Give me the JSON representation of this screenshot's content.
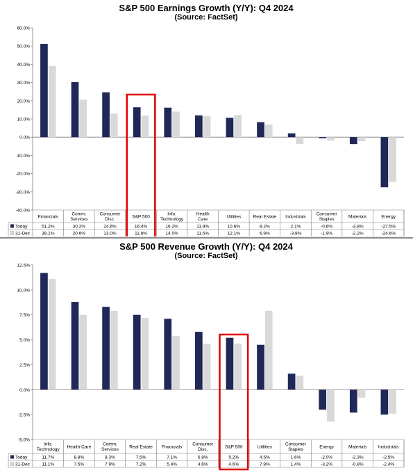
{
  "colors": {
    "today": "#1f2857",
    "prior": "#d9d9d9",
    "highlight": "#e00000",
    "grid": "#000000",
    "text": "#000000"
  },
  "chart_data": [
    {
      "type": "bar",
      "title": "S&P 500 Earnings Growth (Y/Y): Q4 2024",
      "subtitle": "(Source: FactSet)",
      "categories": [
        "Financials",
        "Comm.\nServices",
        "Consumer\nDisc.",
        "S&P 500",
        "Info.\nTechnology",
        "Health\nCare",
        "Utilities",
        "Real Estate",
        "Industrials",
        "Consumer\nStaples",
        "Materials",
        "Energy"
      ],
      "series": [
        {
          "name": "Today",
          "values": [
            51.2,
            30.2,
            24.6,
            16.4,
            16.2,
            11.9,
            10.6,
            8.2,
            2.1,
            -0.6,
            -3.8,
            -27.5
          ]
        },
        {
          "name": "31-Dec",
          "values": [
            39.1,
            20.6,
            13.0,
            11.8,
            14.0,
            11.5,
            12.1,
            6.9,
            -3.8,
            -1.9,
            -2.2,
            -24.6
          ]
        }
      ],
      "table_values": [
        [
          "51.2%",
          "30.2%",
          "24.6%",
          "16.4%",
          "16.2%",
          "11.9%",
          "10.6%",
          "8.2%",
          "2.1%",
          "-0.6%",
          "-3.8%",
          "-27.5%"
        ],
        [
          "39.1%",
          "20.6%",
          "13.0%",
          "11.8%",
          "14.0%",
          "11.5%",
          "12.1%",
          "6.9%",
          "-3.8%",
          "-1.9%",
          "-2.2%",
          "-24.6%"
        ]
      ],
      "yticks": [
        "60.0%",
        "50.0%",
        "40.0%",
        "30.0%",
        "20.0%",
        "10.0%",
        "0.0%",
        "-10.0%",
        "-20.0%",
        "-30.0%",
        "-40.0%"
      ],
      "ylim": [
        -40,
        60
      ],
      "highlight_category": "S&P 500",
      "legend": "data-table-rows"
    },
    {
      "type": "bar",
      "title": "S&P 500 Revenue Growth (Y/Y): Q4 2024",
      "subtitle": "(Source: FactSet)",
      "categories": [
        "Info.\nTechnology",
        "Health Care",
        "Comm.\nServices",
        "Real Estate",
        "Financials",
        "Consumer\nDisc.",
        "S&P 500",
        "Utilities",
        "Consumer\nStaples",
        "Energy",
        "Materials",
        "Industrials"
      ],
      "series": [
        {
          "name": "Today",
          "values": [
            11.7,
            8.8,
            8.3,
            7.5,
            7.1,
            5.8,
            5.2,
            4.5,
            1.6,
            -2.0,
            -2.3,
            -2.5
          ]
        },
        {
          "name": "31-Dec",
          "values": [
            11.1,
            7.5,
            7.9,
            7.2,
            5.4,
            4.6,
            4.6,
            7.9,
            1.4,
            -3.2,
            -0.8,
            -2.4
          ]
        }
      ],
      "table_values": [
        [
          "11.7%",
          "8.8%",
          "8.3%",
          "7.5%",
          "7.1%",
          "5.8%",
          "5.2%",
          "4.5%",
          "1.6%",
          "-2.0%",
          "-2.3%",
          "-2.5%"
        ],
        [
          "11.1%",
          "7.5%",
          "7.9%",
          "7.2%",
          "5.4%",
          "4.6%",
          "4.6%",
          "7.9%",
          "1.4%",
          "-3.2%",
          "-0.8%",
          "-2.4%"
        ]
      ],
      "yticks": [
        "12.5%",
        "10.0%",
        "7.5%",
        "5.0%",
        "2.5%",
        "0.0%",
        "-2.5%",
        "-5.0%"
      ],
      "ylim": [
        -5,
        12.5
      ],
      "highlight_category": "S&P 500",
      "legend": "data-table-rows"
    }
  ]
}
